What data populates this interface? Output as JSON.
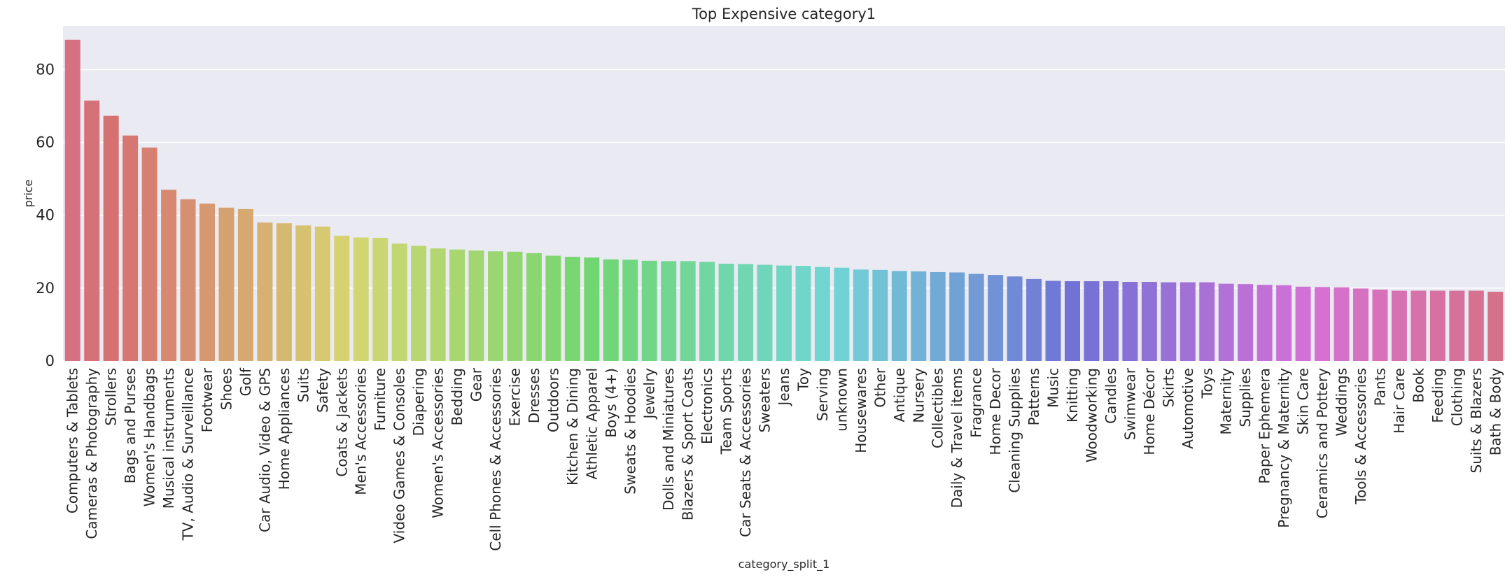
{
  "chart_data": {
    "type": "bar",
    "title": "Top Expensive category1",
    "xlabel": "category_split_1",
    "ylabel": "price",
    "ylim": [
      0,
      92
    ],
    "yticks": [
      0,
      20,
      40,
      60,
      80
    ],
    "grid": true,
    "legend": "none",
    "background_color": "#eaeaf2",
    "categories": [
      "Computers & Tablets",
      "Cameras & Photography",
      "Strollers",
      "Bags and Purses",
      "Women's Handbags",
      "Musical instruments",
      "TV, Audio & Surveillance",
      "Footwear",
      "Shoes",
      "Golf",
      "Car Audio, Video & GPS",
      "Home Appliances",
      "Suits",
      "Safety",
      "Coats & Jackets",
      "Men's Accessories",
      "Furniture",
      "Video Games & Consoles",
      "Diapering",
      "Women's Accessories",
      "Bedding",
      "Gear",
      "Cell Phones & Accessories",
      "Exercise",
      "Dresses",
      "Outdoors",
      "Kitchen & Dining",
      "Athletic Apparel",
      "Boys (4+)",
      "Sweats & Hoodies",
      "Jewelry",
      "Dolls and Miniatures",
      "Blazers & Sport Coats",
      "Electronics",
      "Team Sports",
      "Car Seats & Accessories",
      "Sweaters",
      "Jeans",
      "Toy",
      "Serving",
      "unknown",
      "Housewares",
      "Other",
      "Antique",
      "Nursery",
      "Collectibles",
      "Daily & Travel items",
      "Fragrance",
      "Home Decor",
      "Cleaning Supplies",
      "Patterns",
      "Music",
      "Knitting",
      "Woodworking",
      "Candles",
      "Swimwear",
      "Home Décor",
      "Skirts",
      "Automotive",
      "Toys",
      "Maternity",
      "Supplies",
      "Paper Ephemera",
      "Pregnancy & Maternity",
      "Skin Care",
      "Ceramics and Pottery",
      "Weddings",
      "Tools & Accessories",
      "Pants",
      "Hair Care",
      "Book",
      "Feeding",
      "Clothing",
      "Suits & Blazers",
      "Bath & Body"
    ],
    "values": [
      88.2,
      71.5,
      67.3,
      61.9,
      58.6,
      47.0,
      44.4,
      43.2,
      42.1,
      41.7,
      38.0,
      37.8,
      37.2,
      36.9,
      34.4,
      33.9,
      33.8,
      32.2,
      31.6,
      30.9,
      30.6,
      30.3,
      30.1,
      30.0,
      29.6,
      28.9,
      28.6,
      28.4,
      27.9,
      27.8,
      27.5,
      27.4,
      27.4,
      27.2,
      26.7,
      26.6,
      26.4,
      26.2,
      26.1,
      25.8,
      25.6,
      25.1,
      25.0,
      24.7,
      24.6,
      24.4,
      24.3,
      23.9,
      23.6,
      23.2,
      22.5,
      22.0,
      21.9,
      21.9,
      21.9,
      21.7,
      21.7,
      21.6,
      21.6,
      21.6,
      21.2,
      21.1,
      20.9,
      20.8,
      20.4,
      20.3,
      20.2,
      19.9,
      19.6,
      19.3,
      19.3,
      19.3,
      19.3,
      19.3,
      19.0
    ]
  }
}
